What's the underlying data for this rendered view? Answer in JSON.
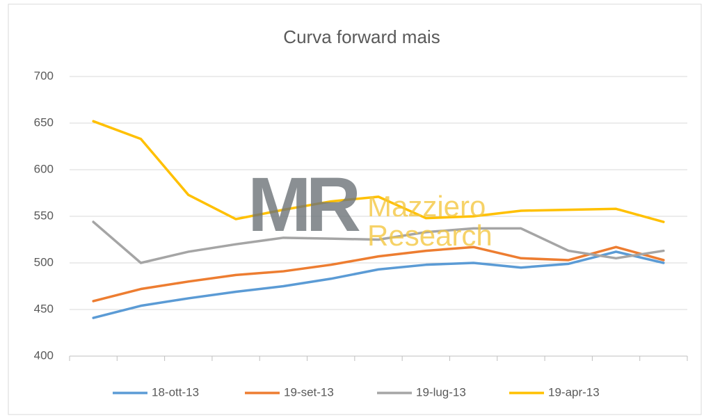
{
  "chart_data": {
    "type": "line",
    "title": "Curva forward mais",
    "categories": [
      null,
      null,
      null,
      null,
      null,
      null,
      null,
      null,
      null,
      null,
      null,
      null,
      null
    ],
    "series": [
      {
        "name": "18-ott-13",
        "color": "#5b9bd5",
        "values": [
          441,
          454,
          462,
          469,
          475,
          483,
          493,
          498,
          500,
          495,
          499,
          512,
          500
        ]
      },
      {
        "name": "19-set-13",
        "color": "#ed7d31",
        "values": [
          459,
          472,
          480,
          487,
          491,
          498,
          507,
          513,
          517,
          505,
          503,
          517,
          503
        ]
      },
      {
        "name": "19-lug-13",
        "color": "#a5a5a5",
        "values": [
          544,
          500,
          512,
          520,
          527,
          526,
          525,
          533,
          537,
          537,
          513,
          505,
          513
        ]
      },
      {
        "name": "19-apr-13",
        "color": "#ffc000",
        "values": [
          652,
          633,
          573,
          547,
          557,
          566,
          571,
          548,
          550,
          556,
          557,
          558,
          544
        ]
      }
    ],
    "ylim": [
      400,
      700
    ],
    "yticks": [
      400,
      450,
      500,
      550,
      600,
      650,
      700
    ],
    "grid": true,
    "legend": "bottom",
    "watermark": {
      "logo": "MR",
      "lines": [
        "Mazziero",
        "Research"
      ]
    }
  }
}
